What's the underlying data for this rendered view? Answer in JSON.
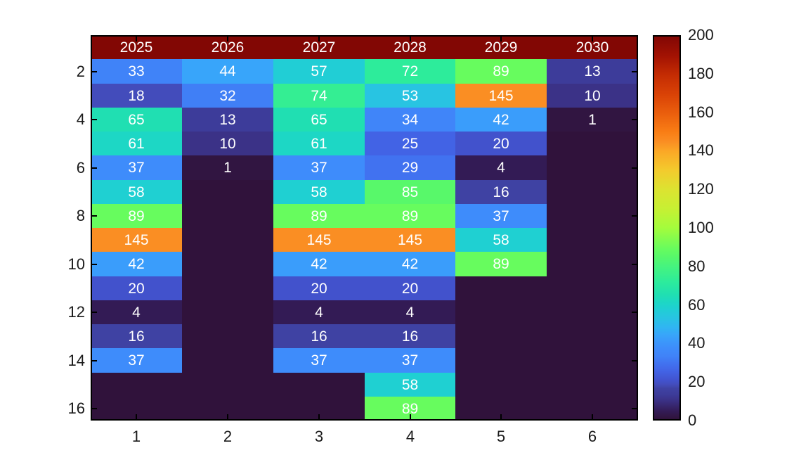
{
  "figure": {
    "background": "#ffffff"
  },
  "chart_data": {
    "type": "heatmap",
    "colormap": "turbo",
    "clim": [
      0,
      200
    ],
    "n_rows": 16,
    "n_cols": 6,
    "grid": false,
    "header_row_values": [
      "2025",
      "2026",
      "2027",
      "2028",
      "2029",
      "2030"
    ],
    "matrix": [
      [
        2025,
        2026,
        2027,
        2028,
        2029,
        2030
      ],
      [
        33,
        44,
        57,
        72,
        89,
        13
      ],
      [
        18,
        32,
        74,
        53,
        145,
        10
      ],
      [
        65,
        13,
        65,
        34,
        42,
        1
      ],
      [
        61,
        10,
        61,
        25,
        20,
        null
      ],
      [
        37,
        1,
        37,
        29,
        4,
        null
      ],
      [
        58,
        null,
        58,
        85,
        16,
        null
      ],
      [
        89,
        null,
        89,
        89,
        37,
        null
      ],
      [
        145,
        null,
        145,
        145,
        58,
        null
      ],
      [
        42,
        null,
        42,
        42,
        89,
        null
      ],
      [
        20,
        null,
        20,
        20,
        null,
        null
      ],
      [
        4,
        null,
        4,
        4,
        null,
        null
      ],
      [
        16,
        null,
        16,
        16,
        null,
        null
      ],
      [
        37,
        null,
        37,
        37,
        null,
        null
      ],
      [
        null,
        null,
        null,
        58,
        null,
        null
      ],
      [
        null,
        null,
        null,
        89,
        null,
        null
      ]
    ],
    "x_tick_labels": [
      "1",
      "2",
      "3",
      "4",
      "5",
      "6"
    ],
    "y_tick_labels": [
      "2",
      "4",
      "6",
      "8",
      "10",
      "12",
      "14",
      "16"
    ],
    "y_tick_rows": [
      2,
      4,
      6,
      8,
      10,
      12,
      14,
      16
    ],
    "cell_text_color": "#ffffff",
    "axis_text_color": "#1a1a1a",
    "empty_value_color": "#30123b",
    "colormap_stops": [
      [
        0,
        "#30123b"
      ],
      [
        1,
        "#311541"
      ],
      [
        4,
        "#331b55"
      ],
      [
        10,
        "#3b3287"
      ],
      [
        13,
        "#3d3c9a"
      ],
      [
        16,
        "#3f42a3"
      ],
      [
        18,
        "#434cbb"
      ],
      [
        20,
        "#4252cc"
      ],
      [
        25,
        "#4263e5"
      ],
      [
        29,
        "#4172f0"
      ],
      [
        33,
        "#4083f8"
      ],
      [
        37,
        "#3e8cfb"
      ],
      [
        42,
        "#3a9dfb"
      ],
      [
        44,
        "#38a5fa"
      ],
      [
        48,
        "#30b5f2"
      ],
      [
        53,
        "#28c4e2"
      ],
      [
        58,
        "#1fd0d2"
      ],
      [
        61,
        "#1dd7c5"
      ],
      [
        65,
        "#20dfb2"
      ],
      [
        72,
        "#2dec9b"
      ],
      [
        74,
        "#34ee93"
      ],
      [
        80,
        "#46f47e"
      ],
      [
        85,
        "#58f86a"
      ],
      [
        89,
        "#67fc5e"
      ],
      [
        100,
        "#a4fc3c"
      ],
      [
        110,
        "#c7f033"
      ],
      [
        120,
        "#dce331"
      ],
      [
        130,
        "#f3cb2d"
      ],
      [
        140,
        "#fba826"
      ],
      [
        145,
        "#fa8e23"
      ],
      [
        150,
        "#f97e15"
      ],
      [
        160,
        "#ea5e0d"
      ],
      [
        170,
        "#d94206"
      ],
      [
        180,
        "#c42c03"
      ],
      [
        190,
        "#a21203"
      ],
      [
        200,
        "#820704"
      ]
    ]
  },
  "colorbar": {
    "min": 0,
    "max": 200,
    "tick_step": 20,
    "tick_labels": [
      "0",
      "20",
      "40",
      "60",
      "80",
      "100",
      "120",
      "140",
      "160",
      "180",
      "200"
    ]
  }
}
